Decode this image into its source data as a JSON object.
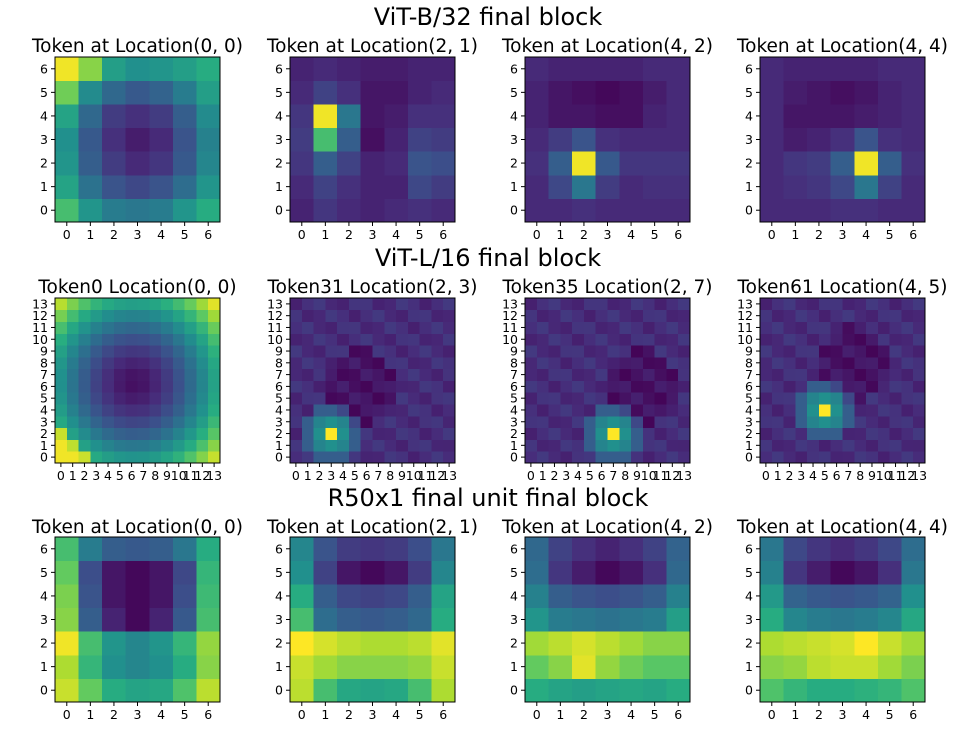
{
  "rows": [
    {
      "title": "ViT-B/32 final block",
      "panels": [
        {
          "title": "Token at Location(0, 0)",
          "type": "heatmap",
          "grid": 7,
          "values": [
            [
              0.7,
              0.52,
              0.42,
              0.4,
              0.42,
              0.52,
              0.62
            ],
            [
              0.58,
              0.38,
              0.26,
              0.22,
              0.26,
              0.36,
              0.52
            ],
            [
              0.52,
              0.3,
              0.18,
              0.12,
              0.16,
              0.28,
              0.46
            ],
            [
              0.5,
              0.28,
              0.14,
              0.08,
              0.12,
              0.26,
              0.44
            ],
            [
              0.58,
              0.34,
              0.18,
              0.14,
              0.18,
              0.3,
              0.48
            ],
            [
              0.78,
              0.48,
              0.34,
              0.28,
              0.32,
              0.42,
              0.56
            ],
            [
              0.98,
              0.82,
              0.56,
              0.5,
              0.52,
              0.56,
              0.62
            ]
          ]
        },
        {
          "title": "Token at Location(2, 1)",
          "type": "heatmap",
          "grid": 7,
          "values": [
            [
              0.1,
              0.16,
              0.12,
              0.1,
              0.12,
              0.14,
              0.12
            ],
            [
              0.12,
              0.2,
              0.14,
              0.1,
              0.1,
              0.22,
              0.18
            ],
            [
              0.16,
              0.3,
              0.2,
              0.1,
              0.12,
              0.26,
              0.24
            ],
            [
              0.18,
              0.7,
              0.3,
              0.04,
              0.1,
              0.2,
              0.18
            ],
            [
              0.16,
              0.98,
              0.4,
              0.06,
              0.08,
              0.14,
              0.14
            ],
            [
              0.12,
              0.2,
              0.14,
              0.06,
              0.06,
              0.1,
              0.12
            ],
            [
              0.1,
              0.12,
              0.1,
              0.08,
              0.08,
              0.1,
              0.1
            ]
          ]
        },
        {
          "title": "Token at Location(4, 2)",
          "type": "heatmap",
          "grid": 7,
          "values": [
            [
              0.12,
              0.12,
              0.14,
              0.12,
              0.12,
              0.12,
              0.12
            ],
            [
              0.12,
              0.22,
              0.4,
              0.18,
              0.12,
              0.14,
              0.14
            ],
            [
              0.14,
              0.3,
              0.98,
              0.28,
              0.16,
              0.16,
              0.16
            ],
            [
              0.12,
              0.18,
              0.26,
              0.14,
              0.12,
              0.12,
              0.12
            ],
            [
              0.1,
              0.06,
              0.06,
              0.04,
              0.04,
              0.1,
              0.12
            ],
            [
              0.1,
              0.06,
              0.04,
              0.02,
              0.04,
              0.08,
              0.12
            ],
            [
              0.12,
              0.1,
              0.1,
              0.1,
              0.1,
              0.12,
              0.12
            ]
          ]
        },
        {
          "title": "Token at Location(4, 4)",
          "type": "heatmap",
          "grid": 7,
          "values": [
            [
              0.12,
              0.12,
              0.12,
              0.14,
              0.14,
              0.12,
              0.12
            ],
            [
              0.12,
              0.14,
              0.16,
              0.22,
              0.4,
              0.2,
              0.12
            ],
            [
              0.12,
              0.16,
              0.18,
              0.3,
              0.98,
              0.3,
              0.14
            ],
            [
              0.12,
              0.08,
              0.1,
              0.14,
              0.26,
              0.14,
              0.12
            ],
            [
              0.12,
              0.06,
              0.06,
              0.06,
              0.08,
              0.1,
              0.12
            ],
            [
              0.12,
              0.08,
              0.06,
              0.04,
              0.06,
              0.1,
              0.12
            ],
            [
              0.12,
              0.1,
              0.1,
              0.1,
              0.1,
              0.12,
              0.12
            ]
          ]
        }
      ]
    },
    {
      "title": "ViT-L/16 final block",
      "panels": [
        {
          "title": "Token0 Location(0, 0)",
          "type": "heatmap",
          "grid": 14,
          "kind": "center-dark"
        },
        {
          "title": "Token31 Location(2, 3)",
          "type": "heatmap",
          "grid": 14,
          "kind": "spot",
          "peak": [
            2,
            3
          ]
        },
        {
          "title": "Token35 Location(2, 7)",
          "type": "heatmap",
          "grid": 14,
          "kind": "spot",
          "peak": [
            2,
            7
          ]
        },
        {
          "title": "Token61 Location(4, 5)",
          "type": "heatmap",
          "grid": 14,
          "kind": "spot",
          "peak": [
            4,
            5
          ]
        }
      ]
    },
    {
      "title": "R50x1 final unit final block",
      "panels": [
        {
          "title": "Token at Location(0, 0)",
          "type": "heatmap",
          "grid": 7,
          "values": [
            [
              0.92,
              0.76,
              0.62,
              0.58,
              0.6,
              0.72,
              0.9
            ],
            [
              0.88,
              0.66,
              0.5,
              0.46,
              0.5,
              0.62,
              0.82
            ],
            [
              0.98,
              0.7,
              0.52,
              0.46,
              0.52,
              0.66,
              0.84
            ],
            [
              0.82,
              0.3,
              0.1,
              0.02,
              0.1,
              0.28,
              0.7
            ],
            [
              0.8,
              0.26,
              0.06,
              0.02,
              0.06,
              0.24,
              0.68
            ],
            [
              0.76,
              0.24,
              0.06,
              0.02,
              0.06,
              0.22,
              0.66
            ],
            [
              0.7,
              0.42,
              0.3,
              0.28,
              0.3,
              0.4,
              0.62
            ]
          ]
        },
        {
          "title": "Token at Location(2, 1)",
          "type": "heatmap",
          "grid": 7,
          "values": [
            [
              0.9,
              0.7,
              0.6,
              0.58,
              0.6,
              0.7,
              0.88
            ],
            [
              0.92,
              0.86,
              0.82,
              0.82,
              0.82,
              0.84,
              0.92
            ],
            [
              1.0,
              0.94,
              0.9,
              0.88,
              0.88,
              0.9,
              0.96
            ],
            [
              0.7,
              0.36,
              0.3,
              0.28,
              0.3,
              0.34,
              0.62
            ],
            [
              0.62,
              0.3,
              0.22,
              0.2,
              0.22,
              0.3,
              0.58
            ],
            [
              0.5,
              0.2,
              0.06,
              0.02,
              0.06,
              0.18,
              0.46
            ],
            [
              0.46,
              0.26,
              0.18,
              0.16,
              0.18,
              0.24,
              0.4
            ]
          ]
        },
        {
          "title": "Token at Location(4, 2)",
          "type": "heatmap",
          "grid": 7,
          "values": [
            [
              0.62,
              0.58,
              0.56,
              0.58,
              0.6,
              0.58,
              0.62
            ],
            [
              0.76,
              0.82,
              0.96,
              0.84,
              0.78,
              0.74,
              0.74
            ],
            [
              0.86,
              0.9,
              0.94,
              0.9,
              0.86,
              0.82,
              0.82
            ],
            [
              0.52,
              0.42,
              0.4,
              0.38,
              0.4,
              0.42,
              0.56
            ],
            [
              0.44,
              0.3,
              0.26,
              0.24,
              0.26,
              0.3,
              0.44
            ],
            [
              0.36,
              0.16,
              0.08,
              0.02,
              0.06,
              0.14,
              0.34
            ],
            [
              0.34,
              0.2,
              0.14,
              0.1,
              0.14,
              0.2,
              0.32
            ]
          ]
        },
        {
          "title": "Token at Location(4, 4)",
          "type": "heatmap",
          "grid": 7,
          "values": [
            [
              0.72,
              0.66,
              0.62,
              0.62,
              0.64,
              0.66,
              0.72
            ],
            [
              0.82,
              0.84,
              0.9,
              0.92,
              0.92,
              0.86,
              0.8
            ],
            [
              0.88,
              0.9,
              0.92,
              0.94,
              1.0,
              0.92,
              0.86
            ],
            [
              0.62,
              0.46,
              0.42,
              0.4,
              0.42,
              0.46,
              0.6
            ],
            [
              0.54,
              0.32,
              0.28,
              0.26,
              0.28,
              0.32,
              0.5
            ],
            [
              0.44,
              0.16,
              0.08,
              0.02,
              0.06,
              0.14,
              0.4
            ],
            [
              0.4,
              0.22,
              0.16,
              0.12,
              0.16,
              0.22,
              0.36
            ]
          ]
        }
      ]
    }
  ],
  "chart_data": {
    "type": "heatmap",
    "figure_layout": "3x4",
    "axis_ticks": {
      "grid7": [
        "0",
        "1",
        "2",
        "3",
        "4",
        "5",
        "6"
      ],
      "grid14": [
        "0",
        "1",
        "2",
        "3",
        "4",
        "5",
        "6",
        "7",
        "8",
        "9",
        "10",
        "11",
        "12",
        "13"
      ]
    },
    "colormap": "viridis",
    "colors": {
      "low": "#440154",
      "mid": "#21918c",
      "high": "#fde725"
    },
    "origin": "lower"
  }
}
